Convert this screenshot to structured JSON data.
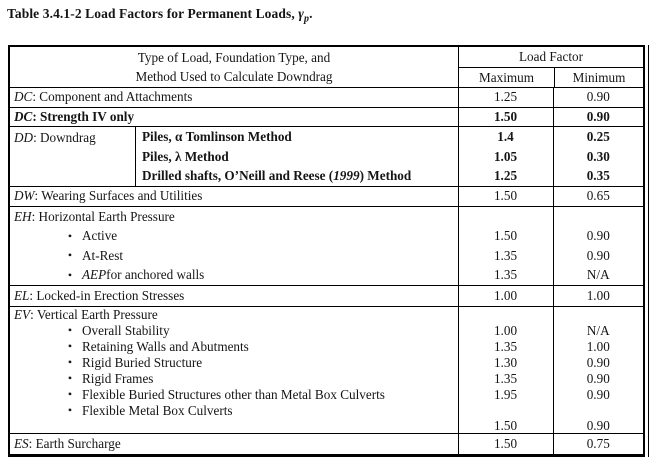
{
  "title": {
    "text_before_symbol": "Table 3.4.1-2 Load Factors for Permanent Loads, ",
    "symbol": "γ",
    "symbol_subscript": "p",
    "text_after": "."
  },
  "table": {
    "header": {
      "row1": "Type of Load, Foundation Type, and",
      "row2": "Method Used to Calculate Downdrag",
      "load_factor": "Load Factor",
      "maximum": "Maximum",
      "minimum": "Minimum"
    },
    "sections": [
      {
        "id": "dc1",
        "rows": [
          {
            "kind": "plain",
            "segments": [
              {
                "t": "DC",
                "i": true
              },
              {
                "t": ": Component and Attachments"
              }
            ],
            "max": "1.25",
            "min": "0.90"
          }
        ]
      },
      {
        "id": "dc2",
        "rows": [
          {
            "kind": "plain",
            "bold": true,
            "segments": [
              {
                "t": "DC",
                "i": true,
                "b": true
              },
              {
                "t": ": Strength IV only",
                "b": true
              }
            ],
            "max": "1.50",
            "min": "0.90"
          }
        ]
      },
      {
        "id": "dd",
        "type": "downdrag",
        "left_segments": [
          {
            "t": "DD",
            "i": true
          },
          {
            "t": ": Downdrag"
          }
        ],
        "rows": [
          {
            "segments": [
              {
                "t": "Piles, α Tomlinson Method",
                "b": true
              }
            ],
            "max": "1.4",
            "min": "0.25"
          },
          {
            "segments": [
              {
                "t": "Piles, λ Method",
                "b": true
              }
            ],
            "max": "1.05",
            "min": "0.30"
          },
          {
            "segments": [
              {
                "t": "Drilled shafts, O’Neill and Reese (",
                "b": true
              },
              {
                "t": "1999",
                "b": true,
                "i": true
              },
              {
                "t": ") Method",
                "b": true
              }
            ],
            "max": "1.25",
            "min": "0.35"
          }
        ]
      },
      {
        "id": "dw",
        "rows": [
          {
            "kind": "plain",
            "segments": [
              {
                "t": "DW",
                "i": true
              },
              {
                "t": ": Wearing Surfaces and Utilities"
              }
            ],
            "max": "1.50",
            "min": "0.65"
          }
        ]
      },
      {
        "id": "eh",
        "rows": [
          {
            "kind": "plain",
            "segments": [
              {
                "t": "EH",
                "i": true
              },
              {
                "t": ": Horizontal Earth Pressure"
              }
            ]
          },
          {
            "kind": "bullet",
            "segments": [
              {
                "t": "Active"
              }
            ],
            "max": "1.50",
            "min": "0.90"
          },
          {
            "kind": "bullet",
            "segments": [
              {
                "t": "At-Rest"
              }
            ],
            "max": "1.35",
            "min": "0.90"
          },
          {
            "kind": "bullet",
            "segments": [
              {
                "t": "AEP",
                "i": true
              },
              {
                "t": " for anchored walls"
              }
            ],
            "max": "1.35",
            "min": "N/A"
          }
        ]
      },
      {
        "id": "el",
        "rows": [
          {
            "kind": "plain",
            "segments": [
              {
                "t": "EL",
                "i": true
              },
              {
                "t": ": Locked-in Erection Stresses"
              }
            ],
            "max": "1.00",
            "min": "1.00"
          }
        ]
      },
      {
        "id": "ev",
        "rows": [
          {
            "kind": "plain",
            "segments": [
              {
                "t": "EV",
                "i": true
              },
              {
                "t": ": Vertical Earth Pressure"
              }
            ]
          },
          {
            "kind": "bullet",
            "segments": [
              {
                "t": "Overall Stability"
              }
            ],
            "max": "1.00",
            "min": "N/A"
          },
          {
            "kind": "bullet",
            "segments": [
              {
                "t": "Retaining Walls and Abutments"
              }
            ],
            "max": "1.35",
            "min": "1.00"
          },
          {
            "kind": "bullet",
            "segments": [
              {
                "t": "Rigid Buried Structure"
              }
            ],
            "max": "1.30",
            "min": "0.90"
          },
          {
            "kind": "bullet",
            "segments": [
              {
                "t": "Rigid Frames"
              }
            ],
            "max": "1.35",
            "min": "0.90"
          },
          {
            "kind": "bullet",
            "segments": [
              {
                "t": "Flexible Buried Structures other than Metal Box Culverts"
              }
            ],
            "max": "1.95",
            "min": "0.90"
          },
          {
            "kind": "bullet",
            "segments": [
              {
                "t": "Flexible Metal Box Culverts"
              }
            ]
          },
          {
            "kind": "values-only",
            "max": "1.50",
            "min": "0.90"
          }
        ]
      },
      {
        "id": "es",
        "rows": [
          {
            "kind": "plain",
            "segments": [
              {
                "t": "ES",
                "i": true
              },
              {
                "t": ": Earth Surcharge"
              }
            ],
            "max": "1.50",
            "min": "0.75"
          }
        ]
      }
    ]
  }
}
